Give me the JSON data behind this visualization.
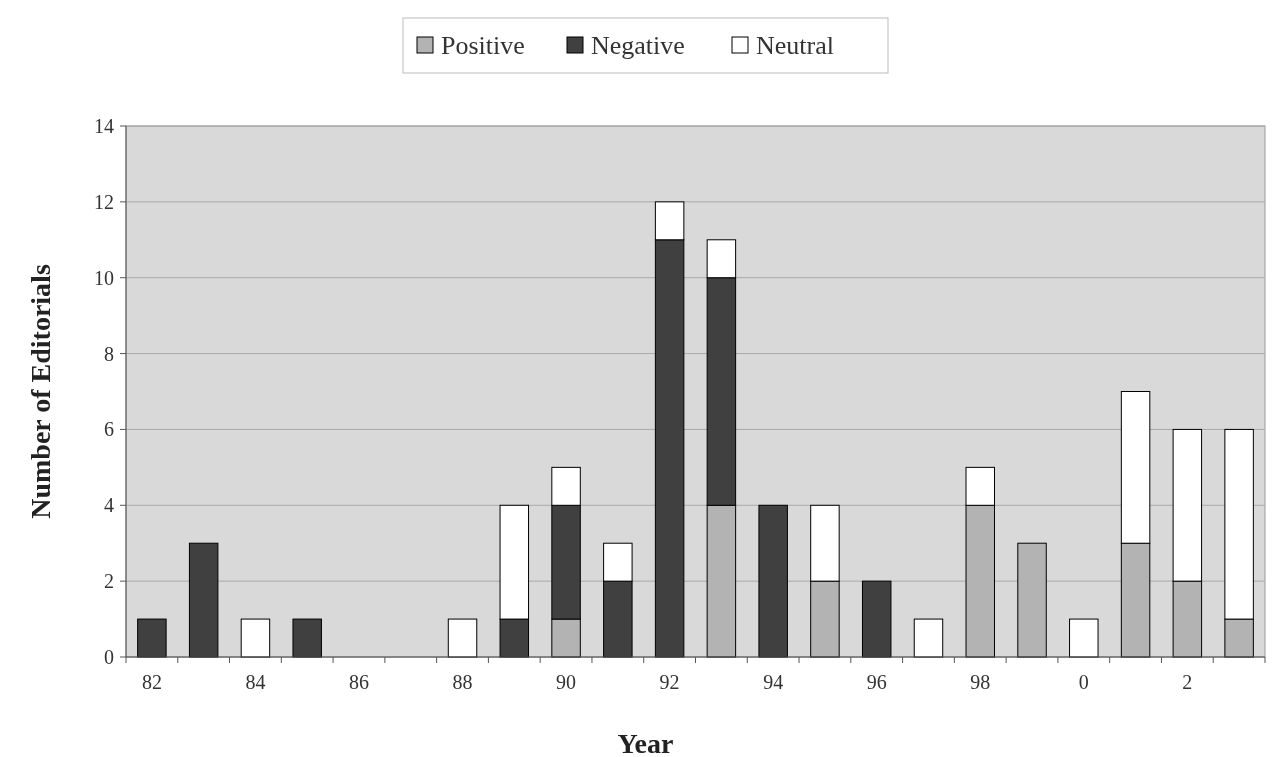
{
  "chart_data": {
    "type": "bar",
    "stacked": true,
    "xlabel": "Year",
    "ylabel": "Number of Editorials",
    "categories": [
      "82",
      null,
      "84",
      null,
      "86",
      null,
      "88",
      null,
      "90",
      null,
      "92",
      null,
      "94",
      null,
      "96",
      null,
      "98",
      null,
      "0",
      null,
      "2",
      null
    ],
    "series": [
      {
        "name": "Positive",
        "color": "#b3b3b3",
        "values": [
          null,
          null,
          null,
          null,
          null,
          null,
          null,
          null,
          1,
          null,
          null,
          4,
          null,
          2,
          null,
          null,
          4,
          3,
          null,
          3,
          2,
          1
        ]
      },
      {
        "name": "Negative",
        "color": "#404040",
        "values": [
          1,
          3,
          null,
          1,
          null,
          null,
          null,
          1,
          3,
          2,
          11,
          6,
          4,
          null,
          2,
          null,
          null,
          null,
          null,
          null,
          null,
          null
        ]
      },
      {
        "name": "Neutral",
        "color": "#ffffff",
        "values": [
          null,
          null,
          1,
          null,
          null,
          null,
          1,
          3,
          1,
          1,
          1,
          1,
          null,
          2,
          null,
          1,
          1,
          null,
          1,
          4,
          4,
          5
        ]
      }
    ],
    "ylim": [
      0,
      14
    ],
    "yticks": [
      0,
      2,
      4,
      6,
      8,
      10,
      12,
      14
    ],
    "grid": "y",
    "legend": "top"
  }
}
